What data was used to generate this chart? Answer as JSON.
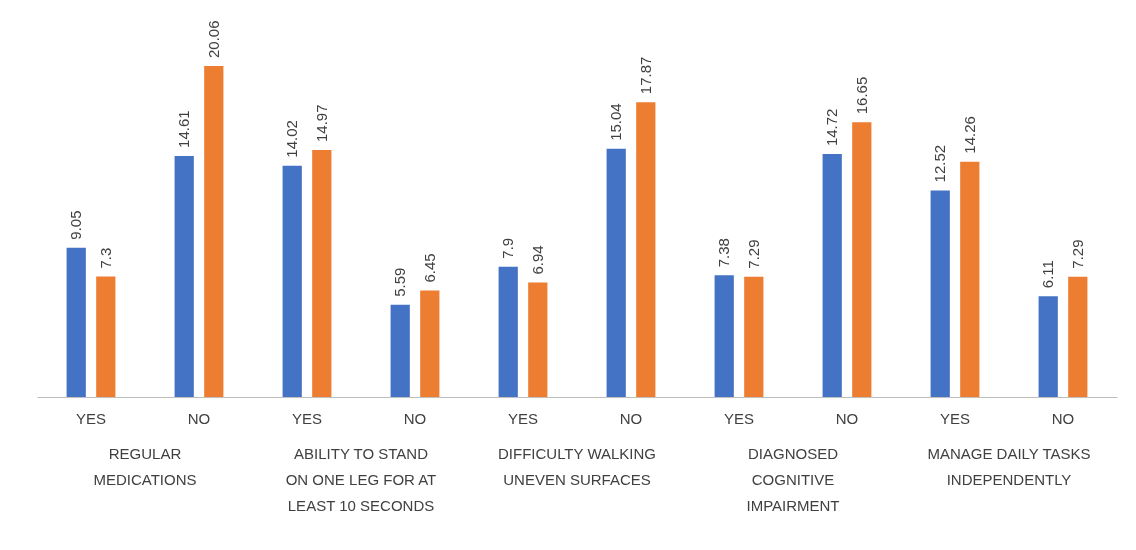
{
  "chart_data": {
    "type": "bar",
    "categories": [
      "YES",
      "NO",
      "YES",
      "NO",
      "YES",
      "NO",
      "YES",
      "NO",
      "YES",
      "NO"
    ],
    "series": [
      {
        "color": "#4472c4",
        "values": [
          9.05,
          14.61,
          14.02,
          5.59,
          7.9,
          15.04,
          7.38,
          14.72,
          12.52,
          6.11
        ]
      },
      {
        "color": "#ed7d31",
        "values": [
          7.3,
          20.06,
          14.97,
          6.45,
          6.94,
          17.87,
          7.29,
          16.65,
          14.26,
          7.29
        ]
      }
    ],
    "annotations": [
      "REGULAR MEDICATIONS",
      "ABILITY TO STAND ON ONE LEG FOR AT LEAST 10 SECONDS",
      "DIFFICULTY WALKING UNEVEN SURFACES",
      "DIAGNOSED COGNITIVE IMPAIRMENT",
      "MANAGE DAILY TASKS INDEPENDENTLY"
    ],
    "data_labels": true,
    "grid": false,
    "legend": false,
    "tick_labels": "x"
  }
}
